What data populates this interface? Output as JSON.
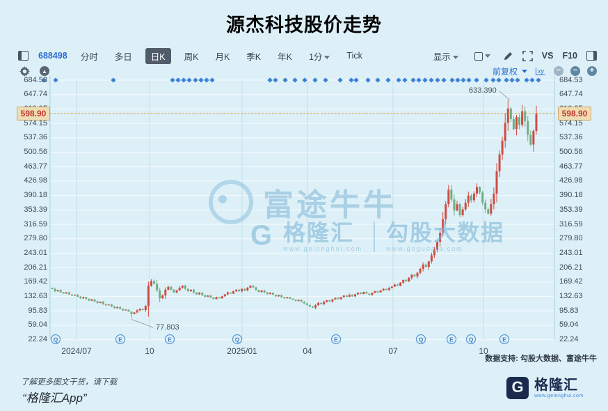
{
  "title": "源杰科技股价走势",
  "toolbar": {
    "code": "688498",
    "tabs": [
      "分时",
      "多日",
      "日K",
      "周K",
      "月K",
      "季K",
      "年K"
    ],
    "active_tab": "日K",
    "minute_tab": "1分",
    "tick_tab": "Tick",
    "display_label": "显示",
    "vs_label": "VS",
    "f10_label": "F10",
    "adjust_label": "前复权"
  },
  "support_text": "数据支持: 勾股大数据、富途牛牛",
  "watermarks": {
    "futu": "富途牛牛",
    "gelonghui_g": "G",
    "gelonghui": "格隆汇",
    "gelonghui_url": "www.gelonghui.com",
    "gogu": "勾股大数据",
    "gogu_url": "www.gogudata.com"
  },
  "footer": {
    "promo_line1": "了解更多图文干货，请下载",
    "promo_line2": "“格隆汇App”",
    "logo_g": "G",
    "logo_name": "格隆汇",
    "logo_url": "www.gelonghui.com"
  },
  "chart_data": {
    "type": "candlestick",
    "title": "源杰科技股价走势",
    "last_price": "598.90",
    "high_label": "633.390",
    "low_label": "77.803",
    "high_value": 633.39,
    "low_value": 77.803,
    "high_index": 161,
    "low_index": 28,
    "first_open": 155,
    "ylim": [
      22.24,
      684.53
    ],
    "y_ticks": [
      "684.53",
      "647.74",
      "610.95",
      "574.15",
      "537.36",
      "500.56",
      "463.77",
      "426.98",
      "390.18",
      "353.39",
      "316.59",
      "279.80",
      "243.01",
      "206.21",
      "169.42",
      "132.63",
      "95.83",
      "59.04",
      "22.24"
    ],
    "x_ticks": [
      {
        "x": 110,
        "label": "2024/07"
      },
      {
        "x": 215,
        "label": "10"
      },
      {
        "x": 348,
        "label": "2025/01"
      },
      {
        "x": 442,
        "label": "04"
      },
      {
        "x": 565,
        "label": "07"
      },
      {
        "x": 695,
        "label": "10"
      }
    ],
    "event_markers": [
      {
        "x": 80,
        "label": "Q"
      },
      {
        "x": 173,
        "label": "E"
      },
      {
        "x": 244,
        "label": "E"
      },
      {
        "x": 341,
        "label": "Q"
      },
      {
        "x": 483,
        "label": "E"
      },
      {
        "x": 605,
        "label": "Q"
      },
      {
        "x": 649,
        "label": "E"
      },
      {
        "x": 677,
        "label": "Q"
      },
      {
        "x": 725,
        "label": "E"
      }
    ],
    "news_dots_x": [
      63,
      80,
      163,
      248,
      256,
      264,
      272,
      281,
      289,
      297,
      305,
      388,
      396,
      410,
      424,
      438,
      453,
      468,
      489,
      505,
      512,
      529,
      543,
      558,
      573,
      582,
      594,
      602,
      611,
      620,
      629,
      638,
      650,
      658,
      666,
      674,
      685,
      699,
      709,
      717,
      728,
      736,
      744,
      757,
      765,
      774
    ],
    "closes": [
      152,
      146,
      149,
      143,
      140,
      143,
      138,
      135,
      137,
      132,
      128,
      131,
      126,
      122,
      125,
      120,
      116,
      119,
      113,
      110,
      112,
      107,
      103,
      106,
      101,
      97,
      99,
      94,
      88,
      92,
      97,
      101,
      98,
      108,
      160,
      172,
      165,
      148,
      128,
      135,
      150,
      157,
      150,
      143,
      148,
      155,
      160,
      152,
      146,
      150,
      143,
      138,
      142,
      136,
      132,
      135,
      130,
      126,
      131,
      128,
      133,
      138,
      143,
      140,
      146,
      150,
      146,
      152,
      148,
      155,
      160,
      156,
      149,
      144,
      148,
      143,
      139,
      142,
      137,
      133,
      136,
      131,
      128,
      131,
      127,
      124,
      121,
      124,
      119,
      115,
      111,
      107,
      104,
      110,
      116,
      113,
      119,
      123,
      120,
      125,
      129,
      126,
      131,
      135,
      132,
      137,
      133,
      138,
      142,
      139,
      144,
      140,
      137,
      142,
      146,
      143,
      148,
      152,
      149,
      154,
      158,
      163,
      160,
      168,
      175,
      171,
      180,
      188,
      184,
      193,
      203,
      214,
      208,
      222,
      238,
      252,
      272,
      295,
      330,
      368,
      405,
      380,
      352,
      368,
      340,
      355,
      372,
      390,
      378,
      395,
      412,
      398,
      372,
      355,
      344,
      368,
      395,
      452,
      495,
      530,
      575,
      612,
      585,
      560,
      590,
      570,
      605,
      580,
      545,
      520,
      555,
      598.9
    ],
    "colors": {
      "up": "#cf4b42",
      "down": "#6fae83",
      "dashed_line": "#d9a34a",
      "tag_bg": "#eddcb4",
      "tag_text": "#c2372b",
      "accent_blue": "#2e6fd3",
      "marker_blue": "#4b93d8"
    },
    "legend_position": "none",
    "grid": true
  }
}
